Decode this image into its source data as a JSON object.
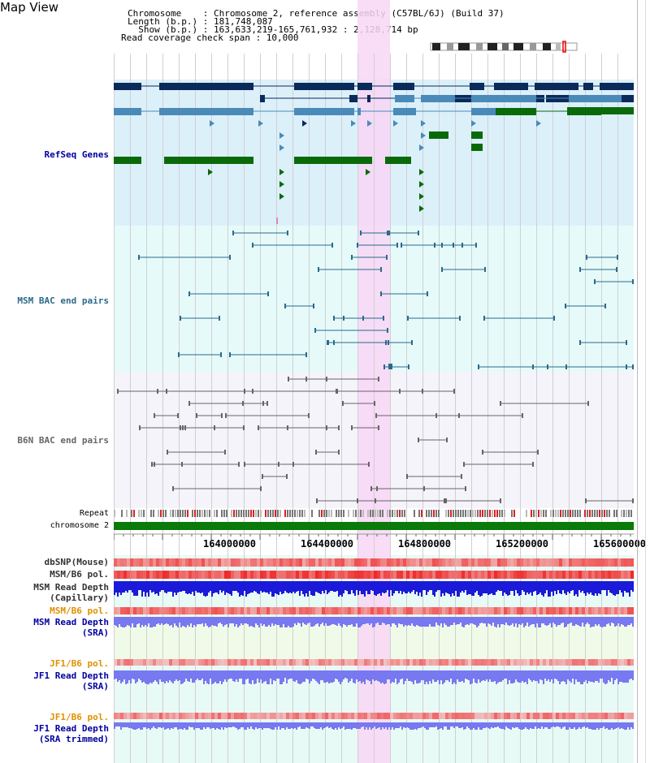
{
  "header": {
    "view_title": "Map View",
    "info_lines": [
      "Chromosome    : Chromosome 2, reference assembly (C57BL/6J) (Build 37)",
      "Length (b.p.) : 181,748,087",
      "  Show (b.p.) : 163,633,219-165,761,932 : 2,128,714 bp",
      "Read coverage check span : 10,000"
    ]
  },
  "tracks": {
    "refseq_label": "RefSeq Genes",
    "msm_bac_label": "MSM BAC end pairs",
    "b6n_bac_label": "B6N BAC end pairs",
    "repeat_label": "Repeat",
    "chromosome_label": "chromosome 2",
    "dbsnp_label": "dbSNP(Mouse)",
    "msm_b6_pol_label": "MSM/B6 pol.",
    "msm_depth_cap_label_1": "MSM Read Depth",
    "msm_depth_cap_label_2": "(Capillary)",
    "msm_b6_pol2_label": "MSM/B6 pol.",
    "msm_depth_sra_label_1": "MSM Read Depth",
    "msm_depth_sra_label_2": "(SRA)",
    "jf1_pol_label": "JF1/B6 pol.",
    "jf1_depth_label_1": "JF1 Read Depth",
    "jf1_depth_label_2": "(SRA)",
    "jf1_pol2_label": "JF1/B6 pol.",
    "jf1_trim_label_1": "JF1 Read Depth",
    "jf1_trim_label_2": "(SRA trimmed)"
  },
  "axis": {
    "ticks": [
      "164000000",
      "164400000",
      "164800000",
      "165200000",
      "165600000"
    ]
  },
  "colors": {
    "refseq_bg": "#dcf0fa",
    "msm_bg": "#e6fafa",
    "b6n_bg": "#f4f4fa",
    "highlight": "#f8d6f4",
    "gene_dark": "#0a2a5a",
    "gene_mid": "#4a8ab8",
    "gene_green": "#0a6a0a",
    "msm_pair": "#2a6a8a",
    "b6n_pair": "#666666",
    "chromosome_bar": "#0a7a0a",
    "snp_red": "#f06060",
    "depth_blue": "#1a1ad8",
    "depth_light": "#7878f0",
    "label_navy": "#0000a0",
    "label_teal": "#2a6a8a",
    "label_orange": "#e09000"
  }
}
